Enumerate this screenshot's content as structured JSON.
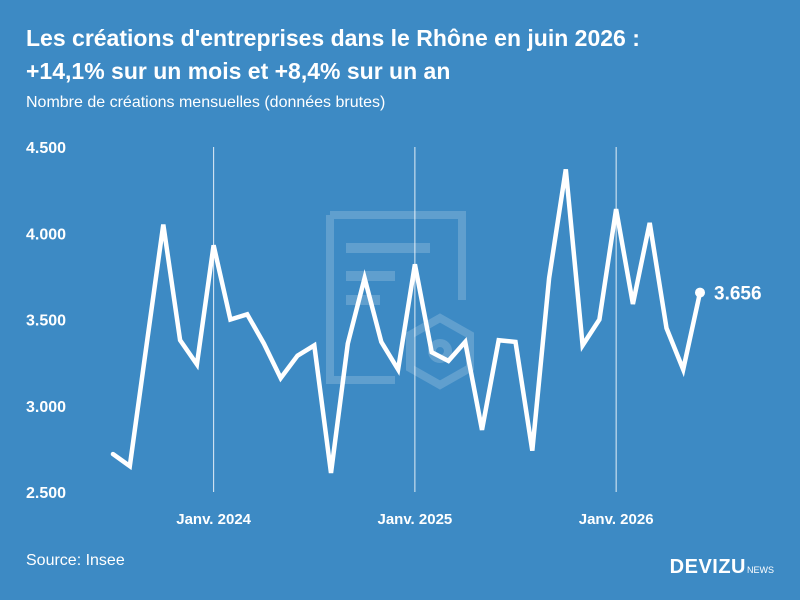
{
  "header": {
    "title_line1": "Les créations d'entreprises dans le Rhône en juin 2026 :",
    "title_line2": "+14,1% sur un mois et +8,4% sur un an",
    "subtitle": "Nombre de créations mensuelles (données brutes)"
  },
  "footer": {
    "source": "Source: Insee",
    "brand": "DEVIZU",
    "brand_sub": "NEWS"
  },
  "colors": {
    "background": "#3d8ac4",
    "line": "#ffffff",
    "watermark": "#5a9bcf"
  },
  "icons": [
    "document-watermark-icon"
  ],
  "chart_data": {
    "type": "line",
    "title": "Les créations d'entreprises dans le Rhône en juin 2026 : +14,1% sur un mois et +8,4% sur un an",
    "subtitle": "Nombre de créations mensuelles (données brutes)",
    "x_start": "2023-07",
    "x_end": "2026-06",
    "x": [
      "2023-07",
      "2023-08",
      "2023-09",
      "2023-10",
      "2023-11",
      "2023-12",
      "2024-01",
      "2024-02",
      "2024-03",
      "2024-04",
      "2024-05",
      "2024-06",
      "2024-07",
      "2024-08",
      "2024-09",
      "2024-10",
      "2024-11",
      "2024-12",
      "2025-01",
      "2025-02",
      "2025-03",
      "2025-04",
      "2025-05",
      "2025-06",
      "2025-07",
      "2025-08",
      "2025-09",
      "2025-10",
      "2025-11",
      "2025-12",
      "2026-01",
      "2026-02",
      "2026-03",
      "2026-04",
      "2026-05",
      "2026-06"
    ],
    "series": [
      {
        "values": [
          2720,
          2650,
          3350,
          4050,
          3380,
          3240,
          3930,
          3500,
          3530,
          3360,
          3160,
          3290,
          3350,
          2610,
          3360,
          3740,
          3370,
          3210,
          3820,
          3310,
          3260,
          3370,
          2860,
          3380,
          3370,
          2740,
          3740,
          4370,
          3350,
          3500,
          4140,
          3590,
          4060,
          3450,
          3210,
          3656
        ]
      }
    ],
    "last_label": "3.656",
    "xticks": [
      {
        "date": "2024-01",
        "label": "Janv. 2024"
      },
      {
        "date": "2025-01",
        "label": "Janv. 2025"
      },
      {
        "date": "2026-01",
        "label": "Janv. 2026"
      }
    ],
    "yticks": [
      2500,
      3000,
      3500,
      4000,
      4500
    ],
    "ytick_labels": [
      "2.500",
      "3.000",
      "3.500",
      "4.000",
      "4.500"
    ],
    "ylim": [
      2500,
      4500
    ],
    "grid": "vertical lines at january"
  }
}
